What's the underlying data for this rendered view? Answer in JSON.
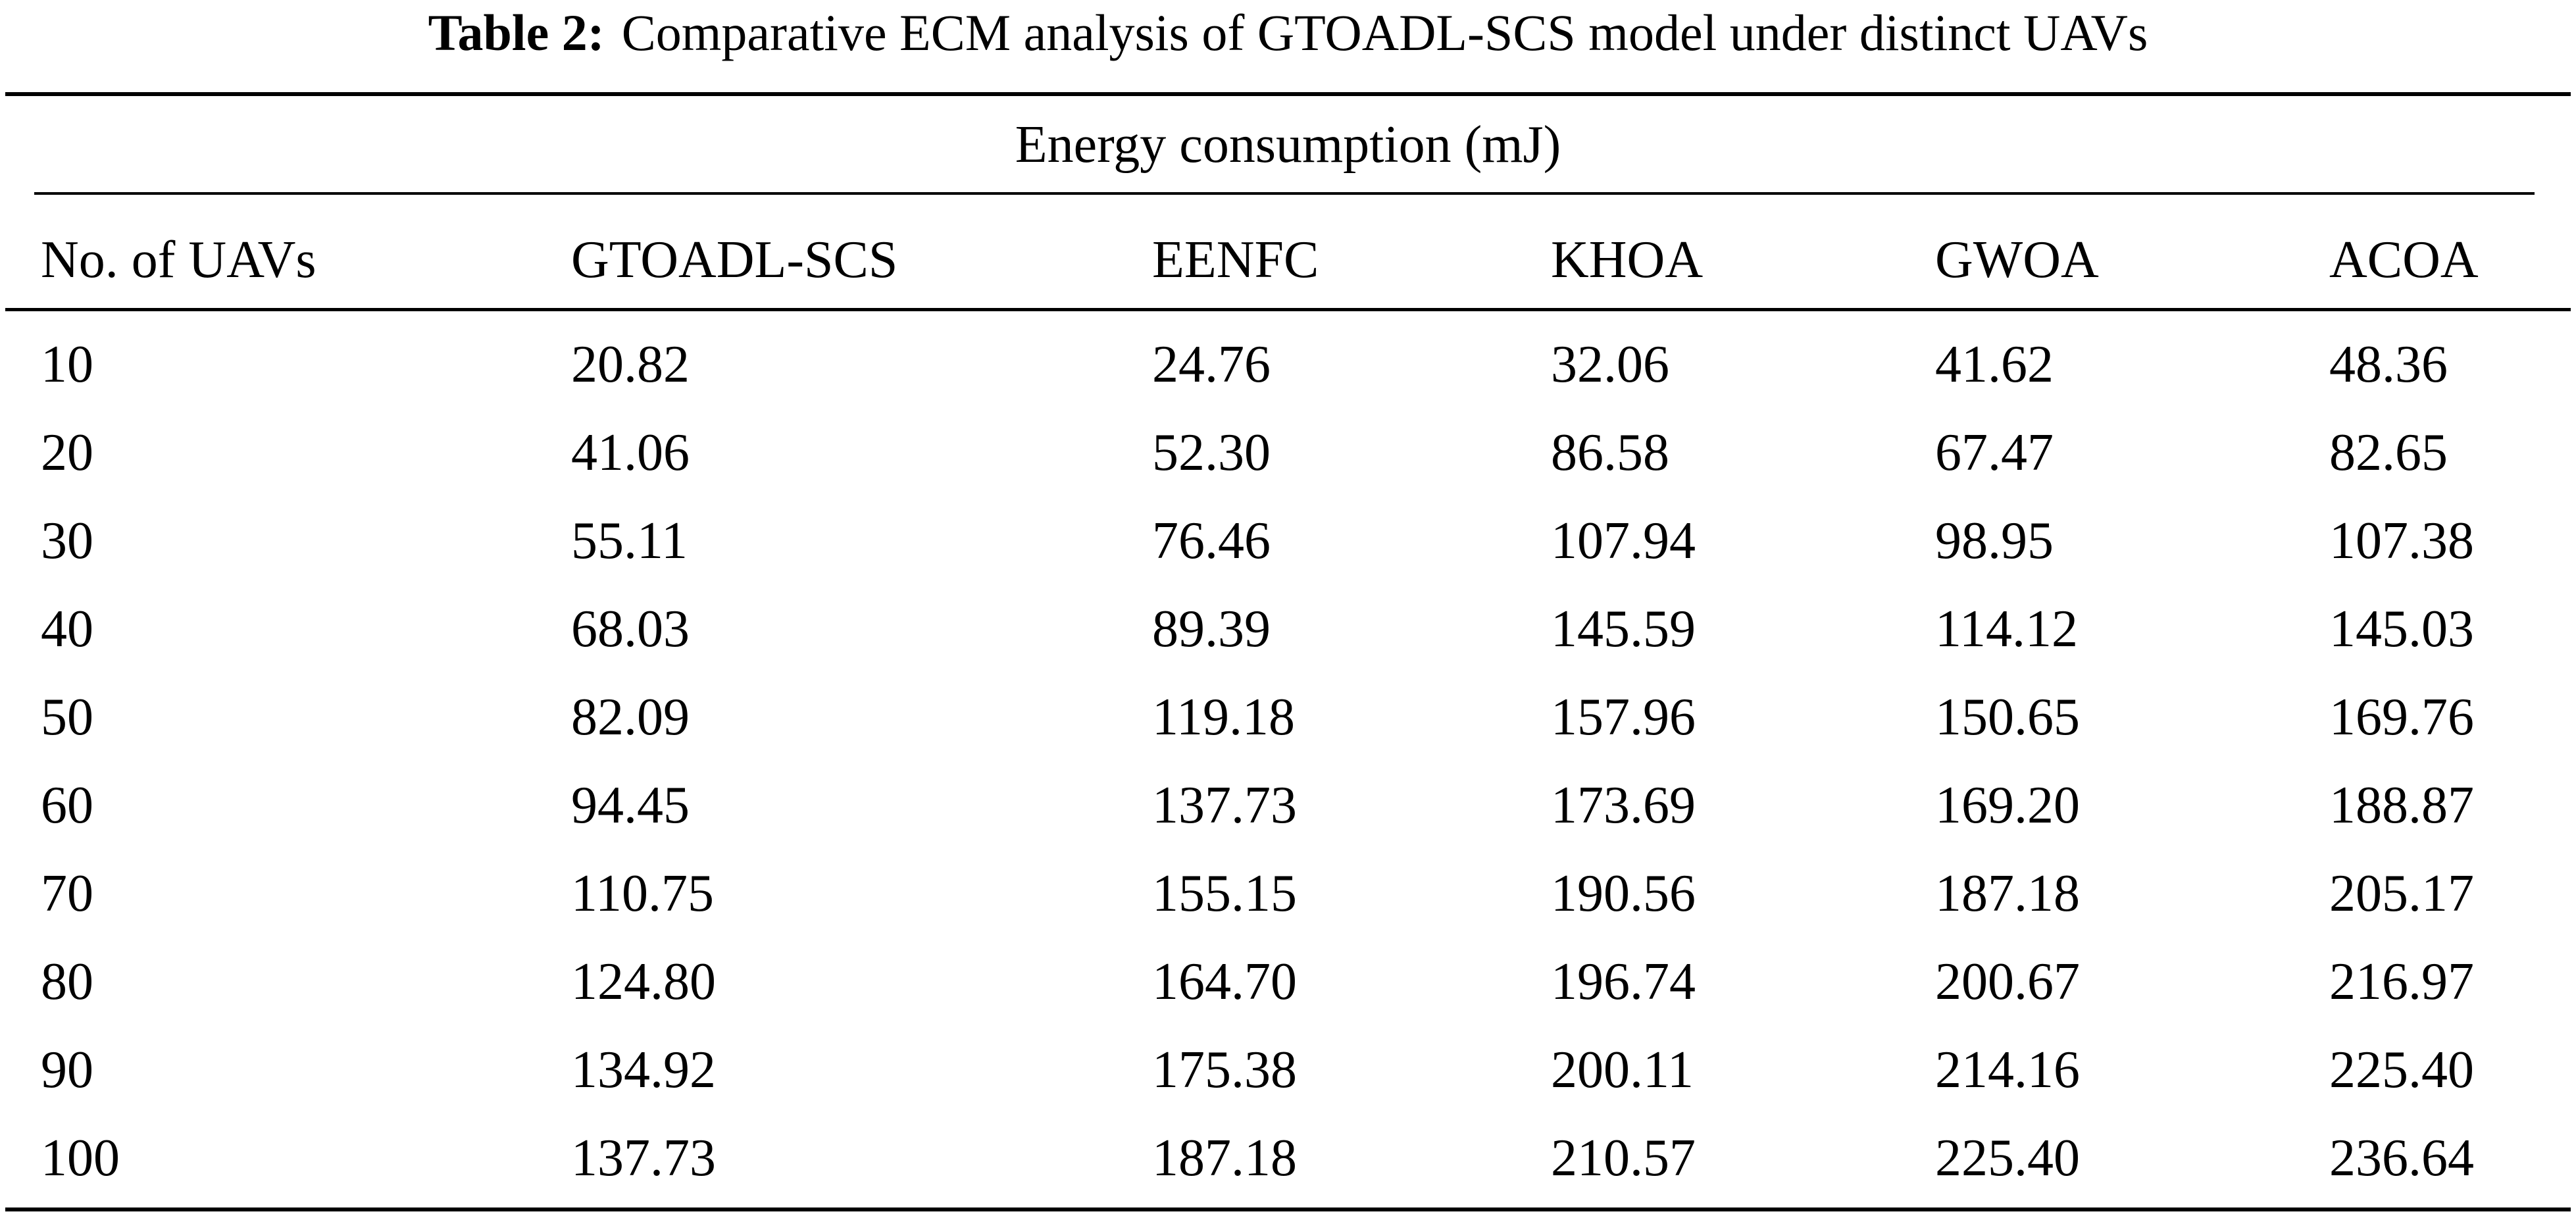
{
  "caption": {
    "label": "Table 2:",
    "text": "Comparative ECM analysis of GTOADL-SCS model under distinct UAVs"
  },
  "table": {
    "group_header": "Energy consumption (mJ)",
    "columns": [
      "No. of UAVs",
      "GTOADL-SCS",
      "EENFC",
      "KHOA",
      "GWOA",
      "ACOA"
    ],
    "rows": [
      [
        "10",
        "20.82",
        "24.76",
        "32.06",
        "41.62",
        "48.36"
      ],
      [
        "20",
        "41.06",
        "52.30",
        "86.58",
        "67.47",
        "82.65"
      ],
      [
        "30",
        "55.11",
        "76.46",
        "107.94",
        "98.95",
        "107.38"
      ],
      [
        "40",
        "68.03",
        "89.39",
        "145.59",
        "114.12",
        "145.03"
      ],
      [
        "50",
        "82.09",
        "119.18",
        "157.96",
        "150.65",
        "169.76"
      ],
      [
        "60",
        "94.45",
        "137.73",
        "173.69",
        "169.20",
        "188.87"
      ],
      [
        "70",
        "110.75",
        "155.15",
        "190.56",
        "187.18",
        "205.17"
      ],
      [
        "80",
        "124.80",
        "164.70",
        "196.74",
        "200.67",
        "216.97"
      ],
      [
        "90",
        "134.92",
        "175.38",
        "200.11",
        "214.16",
        "225.40"
      ],
      [
        "100",
        "137.73",
        "187.18",
        "210.57",
        "225.40",
        "236.64"
      ]
    ]
  }
}
